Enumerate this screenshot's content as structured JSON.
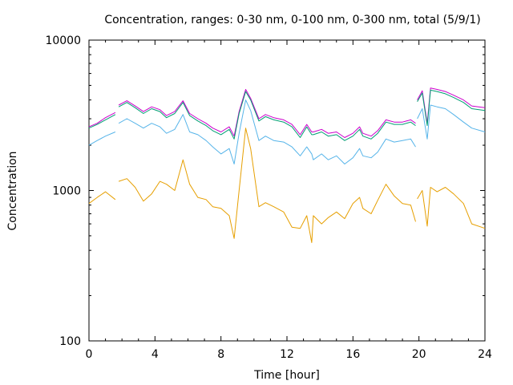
{
  "chart_data": {
    "type": "line",
    "title": "Concentration, ranges: 0-30 nm, 0-100 nm, 0-300 nm, total (5/9/1)",
    "xlabel": "Time [hour]",
    "ylabel": "Concentration",
    "xlim": [
      0,
      24
    ],
    "ylim": [
      100,
      10000
    ],
    "yscale": "log",
    "x_ticks": [
      0,
      4,
      8,
      12,
      16,
      20,
      24
    ],
    "x_tick_labels": [
      "0",
      "4",
      "8",
      "12",
      "16",
      "20",
      "24"
    ],
    "y_ticks": [
      100,
      1000,
      10000
    ],
    "y_tick_labels": [
      "100",
      "1000",
      "10000"
    ],
    "grid": false,
    "legend": "none",
    "series": [
      {
        "color": "#cc00cc",
        "values": [
          [
            0,
            2650
          ],
          [
            0.5,
            2800
          ],
          [
            1,
            3050
          ],
          [
            1.6,
            3300
          ],
          null,
          [
            1.8,
            3700
          ],
          [
            2.3,
            3950
          ],
          [
            2.8,
            3650
          ],
          [
            3.3,
            3350
          ],
          [
            3.8,
            3600
          ],
          [
            4.3,
            3450
          ],
          [
            4.7,
            3150
          ],
          [
            5.2,
            3350
          ],
          [
            5.7,
            3950
          ],
          [
            6.1,
            3250
          ],
          [
            6.6,
            3000
          ],
          [
            7.1,
            2800
          ],
          [
            7.5,
            2600
          ],
          [
            8.0,
            2450
          ],
          [
            8.5,
            2650
          ],
          [
            8.8,
            2300
          ],
          [
            9.1,
            3350
          ],
          [
            9.5,
            4700
          ],
          [
            9.8,
            4100
          ],
          [
            10.3,
            3000
          ],
          [
            10.7,
            3200
          ],
          [
            11.2,
            3050
          ],
          [
            11.8,
            2950
          ],
          [
            12.3,
            2750
          ],
          [
            12.8,
            2350
          ],
          [
            13.2,
            2750
          ],
          [
            13.5,
            2450
          ],
          [
            13.6,
            2450
          ],
          [
            14.1,
            2550
          ],
          [
            14.5,
            2400
          ],
          [
            15.0,
            2450
          ],
          [
            15.5,
            2250
          ],
          [
            16.0,
            2400
          ],
          [
            16.4,
            2650
          ],
          [
            16.6,
            2400
          ],
          [
            17.1,
            2300
          ],
          [
            17.5,
            2500
          ],
          [
            18.0,
            2950
          ],
          [
            18.5,
            2850
          ],
          [
            19.0,
            2850
          ],
          [
            19.5,
            2950
          ],
          [
            19.8,
            2800
          ],
          null,
          [
            19.9,
            4000
          ],
          [
            20.2,
            4600
          ],
          [
            20.5,
            2800
          ],
          [
            20.7,
            4800
          ],
          [
            21.1,
            4700
          ],
          [
            21.6,
            4550
          ],
          [
            22.1,
            4300
          ],
          [
            22.7,
            4000
          ],
          [
            23.2,
            3650
          ],
          [
            24,
            3550
          ]
        ]
      },
      {
        "color": "#009e73",
        "values": [
          [
            0,
            2600
          ],
          [
            0.5,
            2750
          ],
          [
            1,
            2950
          ],
          [
            1.6,
            3200
          ],
          null,
          [
            1.8,
            3600
          ],
          [
            2.3,
            3850
          ],
          [
            2.8,
            3550
          ],
          [
            3.3,
            3250
          ],
          [
            3.8,
            3500
          ],
          [
            4.3,
            3350
          ],
          [
            4.7,
            3050
          ],
          [
            5.2,
            3250
          ],
          [
            5.7,
            3850
          ],
          [
            6.1,
            3150
          ],
          [
            6.6,
            2900
          ],
          [
            7.1,
            2700
          ],
          [
            7.5,
            2500
          ],
          [
            8.0,
            2350
          ],
          [
            8.5,
            2550
          ],
          [
            8.8,
            2200
          ],
          [
            9.1,
            3250
          ],
          [
            9.5,
            4550
          ],
          [
            9.8,
            4000
          ],
          [
            10.3,
            2900
          ],
          [
            10.7,
            3100
          ],
          [
            11.2,
            2950
          ],
          [
            11.8,
            2850
          ],
          [
            12.3,
            2650
          ],
          [
            12.8,
            2250
          ],
          [
            13.2,
            2650
          ],
          [
            13.5,
            2350
          ],
          [
            13.6,
            2350
          ],
          [
            14.1,
            2450
          ],
          [
            14.5,
            2300
          ],
          [
            15.0,
            2350
          ],
          [
            15.5,
            2150
          ],
          [
            16.0,
            2300
          ],
          [
            16.4,
            2550
          ],
          [
            16.6,
            2300
          ],
          [
            17.1,
            2200
          ],
          [
            17.5,
            2400
          ],
          [
            18.0,
            2850
          ],
          [
            18.5,
            2750
          ],
          [
            19.0,
            2750
          ],
          [
            19.5,
            2850
          ],
          [
            19.8,
            2700
          ],
          null,
          [
            19.9,
            3900
          ],
          [
            20.2,
            4450
          ],
          [
            20.5,
            2700
          ],
          [
            20.7,
            4650
          ],
          [
            21.1,
            4550
          ],
          [
            21.6,
            4400
          ],
          [
            22.1,
            4150
          ],
          [
            22.7,
            3850
          ],
          [
            23.2,
            3500
          ],
          [
            24,
            3400
          ]
        ]
      },
      {
        "color": "#56b4e9",
        "values": [
          [
            0,
            2000
          ],
          [
            0.5,
            2150
          ],
          [
            1,
            2300
          ],
          [
            1.6,
            2450
          ],
          null,
          [
            1.8,
            2800
          ],
          [
            2.3,
            3000
          ],
          [
            2.8,
            2800
          ],
          [
            3.3,
            2600
          ],
          [
            3.8,
            2800
          ],
          [
            4.3,
            2650
          ],
          [
            4.7,
            2400
          ],
          [
            5.2,
            2550
          ],
          [
            5.7,
            3200
          ],
          [
            6.1,
            2450
          ],
          [
            6.6,
            2350
          ],
          [
            7.1,
            2150
          ],
          [
            7.5,
            1950
          ],
          [
            8.0,
            1750
          ],
          [
            8.5,
            1900
          ],
          [
            8.8,
            1500
          ],
          [
            9.1,
            2400
          ],
          [
            9.5,
            4000
          ],
          [
            9.8,
            3400
          ],
          [
            10.3,
            2150
          ],
          [
            10.7,
            2300
          ],
          [
            11.2,
            2150
          ],
          [
            11.8,
            2100
          ],
          [
            12.3,
            1950
          ],
          [
            12.8,
            1700
          ],
          [
            13.2,
            1950
          ],
          [
            13.5,
            1750
          ],
          [
            13.6,
            1600
          ],
          [
            14.1,
            1750
          ],
          [
            14.5,
            1600
          ],
          [
            15.0,
            1700
          ],
          [
            15.5,
            1500
          ],
          [
            16.0,
            1650
          ],
          [
            16.4,
            1900
          ],
          [
            16.6,
            1700
          ],
          [
            17.1,
            1650
          ],
          [
            17.5,
            1800
          ],
          [
            18.0,
            2200
          ],
          [
            18.5,
            2100
          ],
          [
            19.0,
            2150
          ],
          [
            19.5,
            2200
          ],
          [
            19.8,
            1950
          ],
          null,
          [
            19.9,
            3000
          ],
          [
            20.2,
            3500
          ],
          [
            20.5,
            2200
          ],
          [
            20.7,
            3700
          ],
          [
            21.1,
            3600
          ],
          [
            21.6,
            3500
          ],
          [
            22.1,
            3200
          ],
          [
            22.7,
            2850
          ],
          [
            23.2,
            2600
          ],
          [
            24,
            2450
          ]
        ]
      },
      {
        "color": "#e69f00",
        "values": [
          [
            0,
            820
          ],
          [
            0.5,
            900
          ],
          [
            1,
            980
          ],
          [
            1.6,
            870
          ],
          null,
          [
            1.8,
            1150
          ],
          [
            2.3,
            1200
          ],
          [
            2.8,
            1050
          ],
          [
            3.3,
            850
          ],
          [
            3.8,
            950
          ],
          [
            4.3,
            1150
          ],
          [
            4.7,
            1100
          ],
          [
            5.2,
            1000
          ],
          [
            5.7,
            1600
          ],
          [
            6.1,
            1100
          ],
          [
            6.6,
            900
          ],
          [
            7.1,
            870
          ],
          [
            7.5,
            780
          ],
          [
            8.0,
            760
          ],
          [
            8.5,
            680
          ],
          [
            8.8,
            480
          ],
          [
            9.1,
            1000
          ],
          [
            9.5,
            2600
          ],
          [
            9.8,
            1900
          ],
          [
            10.3,
            780
          ],
          [
            10.7,
            830
          ],
          [
            11.2,
            780
          ],
          [
            11.8,
            720
          ],
          [
            12.3,
            570
          ],
          [
            12.8,
            560
          ],
          [
            13.2,
            680
          ],
          [
            13.5,
            450
          ],
          [
            13.6,
            680
          ],
          [
            14.1,
            600
          ],
          [
            14.5,
            660
          ],
          [
            15.0,
            720
          ],
          [
            15.5,
            650
          ],
          [
            16.0,
            820
          ],
          [
            16.4,
            900
          ],
          [
            16.6,
            760
          ],
          [
            17.1,
            700
          ],
          [
            17.5,
            860
          ],
          [
            18.0,
            1100
          ],
          [
            18.5,
            920
          ],
          [
            19.0,
            820
          ],
          [
            19.5,
            800
          ],
          [
            19.8,
            620
          ],
          null,
          [
            19.9,
            880
          ],
          [
            20.2,
            1000
          ],
          [
            20.5,
            580
          ],
          [
            20.7,
            1050
          ],
          [
            21.1,
            980
          ],
          [
            21.6,
            1050
          ],
          [
            22.1,
            950
          ],
          [
            22.7,
            820
          ],
          [
            23.2,
            600
          ],
          [
            24,
            560
          ]
        ]
      }
    ]
  }
}
